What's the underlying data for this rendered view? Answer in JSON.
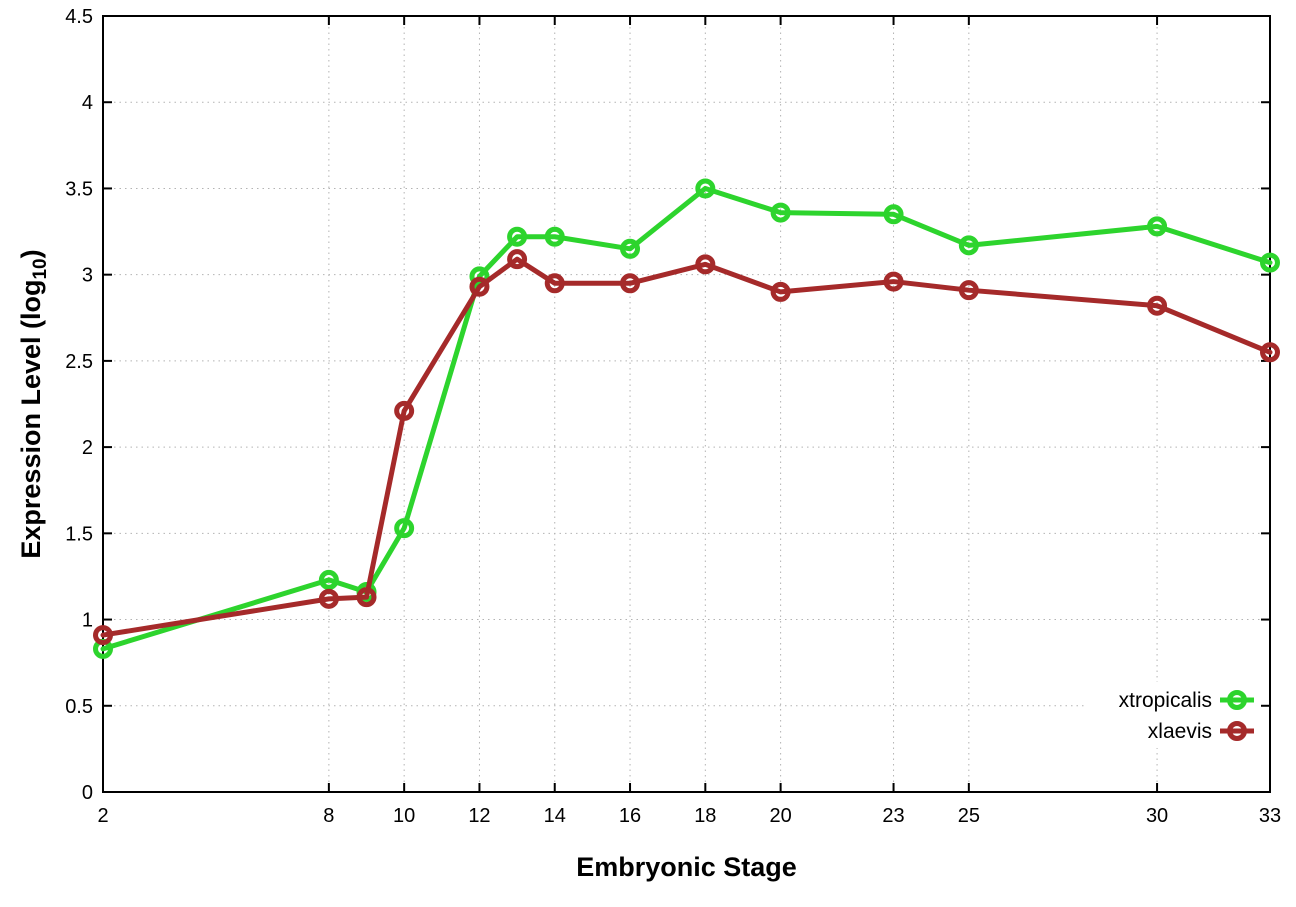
{
  "chart_data": {
    "type": "line",
    "title": "",
    "xlabel": "Embryonic Stage",
    "ylabel": "Expression Level (log10)",
    "ylabel_parts": {
      "main": "Expression Level (log",
      "sub": "10",
      "end": ")"
    },
    "xlim": [
      2,
      33
    ],
    "ylim": [
      0,
      4.5
    ],
    "xticks": [
      2,
      8,
      10,
      12,
      14,
      16,
      18,
      20,
      23,
      25,
      30,
      33
    ],
    "yticks": [
      0,
      0.5,
      1,
      1.5,
      2,
      2.5,
      3,
      3.5,
      4,
      4.5
    ],
    "grid": true,
    "legend_position": "inside-bottom-right",
    "x": [
      2,
      8,
      9,
      10,
      12,
      13,
      14,
      16,
      18,
      20,
      23,
      25,
      30,
      33
    ],
    "series": [
      {
        "name": "xtropicalis",
        "color": "#2dd42d",
        "values": [
          0.83,
          1.23,
          1.16,
          1.53,
          2.99,
          3.22,
          3.22,
          3.15,
          3.5,
          3.36,
          3.35,
          3.17,
          3.28,
          3.07
        ]
      },
      {
        "name": "xlaevis",
        "color": "#a52a2a",
        "values": [
          0.91,
          1.12,
          1.13,
          2.21,
          2.93,
          3.09,
          2.95,
          2.95,
          3.06,
          2.9,
          2.96,
          2.91,
          2.82,
          2.55
        ]
      }
    ],
    "style": {
      "background": "#ffffff",
      "axis_color": "#000000",
      "grid_color": "#b3b3b3",
      "line_width": 5,
      "marker_outer_radius": 10,
      "marker_stroke": 5
    }
  }
}
